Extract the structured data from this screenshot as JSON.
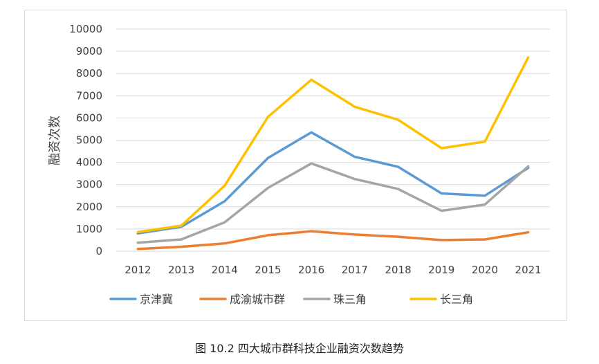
{
  "caption": "图 10.2  四大城市群科技企业融资次数趋势",
  "chart_data": {
    "type": "line",
    "title": "",
    "xlabel": "",
    "ylabel": "融资次数",
    "x": [
      "2012",
      "2013",
      "2014",
      "2015",
      "2016",
      "2017",
      "2018",
      "2019",
      "2020",
      "2021"
    ],
    "ylim": [
      0,
      10000
    ],
    "yticks": [
      0,
      1000,
      2000,
      3000,
      4000,
      5000,
      6000,
      7000,
      8000,
      9000,
      10000
    ],
    "grid": true,
    "legend_position": "bottom",
    "series": [
      {
        "name": "京津冀",
        "color": "#5b9bd5",
        "values": [
          800,
          1100,
          2250,
          4200,
          5350,
          4250,
          3800,
          2600,
          2500,
          3750
        ]
      },
      {
        "name": "成渝城市群",
        "color": "#ed7d31",
        "values": [
          100,
          200,
          350,
          720,
          900,
          750,
          650,
          500,
          530,
          850
        ]
      },
      {
        "name": "珠三角",
        "color": "#a5a5a5",
        "values": [
          380,
          530,
          1300,
          2850,
          3950,
          3250,
          2800,
          1820,
          2100,
          3820
        ]
      },
      {
        "name": "长三角",
        "color": "#ffc000",
        "values": [
          860,
          1150,
          2950,
          6050,
          7720,
          6500,
          5920,
          4640,
          4930,
          8720
        ]
      }
    ]
  }
}
